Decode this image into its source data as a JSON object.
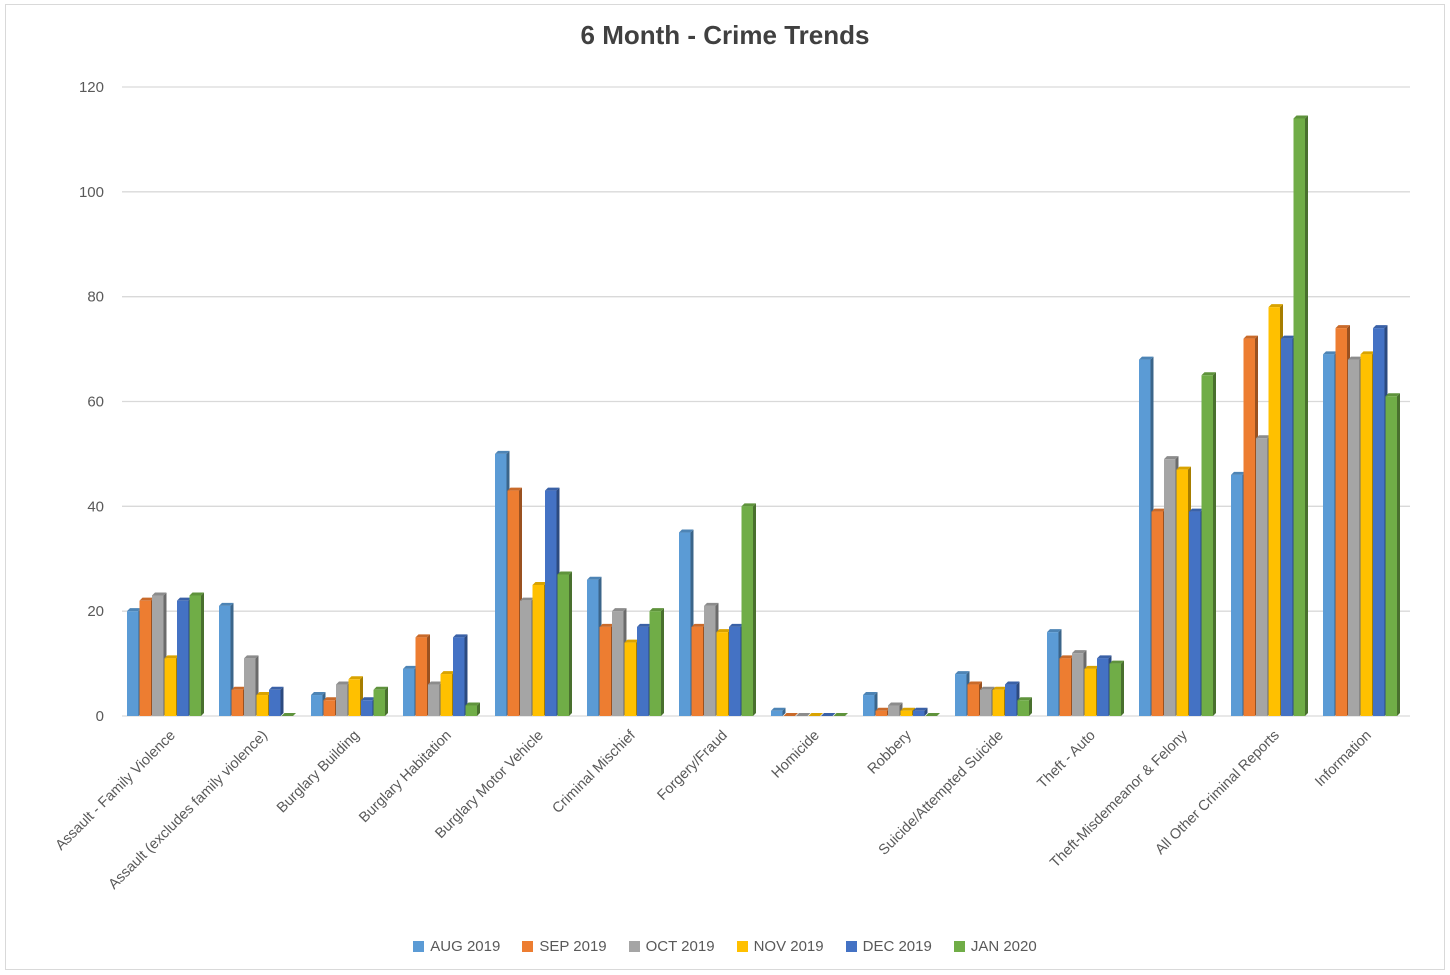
{
  "chart_data": {
    "type": "bar",
    "title": "6 Month - Crime Trends",
    "xlabel": "",
    "ylabel": "",
    "ylim": [
      0,
      120
    ],
    "yticks": [
      "0",
      "20",
      "40",
      "60",
      "80",
      "100",
      "120"
    ],
    "grid": true,
    "legend_position": "bottom",
    "categories": [
      "Assault - Family Violence",
      "Assault (excludes family violence)",
      "Burglary Building",
      "Burglary Habitation",
      "Burglary Motor Vehicle",
      "Criminal Mischief",
      "Forgery/Fraud",
      "Homicide",
      "Robbery",
      "Suicide/Attempted Suicide",
      "Theft - Auto",
      "Theft-Misdemeanor &  Felony",
      "All Other Criminal Reports",
      "Information"
    ],
    "series": [
      {
        "name": "AUG 2019",
        "color": "#5b9bd5",
        "values": [
          20,
          21,
          4,
          9,
          50,
          26,
          35,
          1,
          4,
          8,
          16,
          68,
          46,
          69
        ]
      },
      {
        "name": "SEP 2019",
        "color": "#ed7d31",
        "values": [
          22,
          5,
          3,
          15,
          43,
          17,
          17,
          0,
          1,
          6,
          11,
          39,
          72,
          74
        ]
      },
      {
        "name": "OCT 2019",
        "color": "#a5a5a5",
        "values": [
          23,
          11,
          6,
          6,
          22,
          20,
          21,
          0,
          2,
          5,
          12,
          49,
          53,
          68
        ]
      },
      {
        "name": "NOV 2019",
        "color": "#ffc000",
        "values": [
          11,
          4,
          7,
          8,
          25,
          14,
          16,
          0,
          1,
          5,
          9,
          47,
          78,
          69
        ]
      },
      {
        "name": "DEC 2019",
        "color": "#4472c4",
        "values": [
          22,
          5,
          3,
          15,
          43,
          17,
          17,
          0,
          1,
          6,
          11,
          39,
          72,
          74
        ]
      },
      {
        "name": "JAN 2020",
        "color": "#70ad47",
        "values": [
          23,
          0,
          5,
          2,
          27,
          20,
          40,
          0,
          0,
          3,
          10,
          65,
          114,
          61
        ]
      }
    ]
  }
}
